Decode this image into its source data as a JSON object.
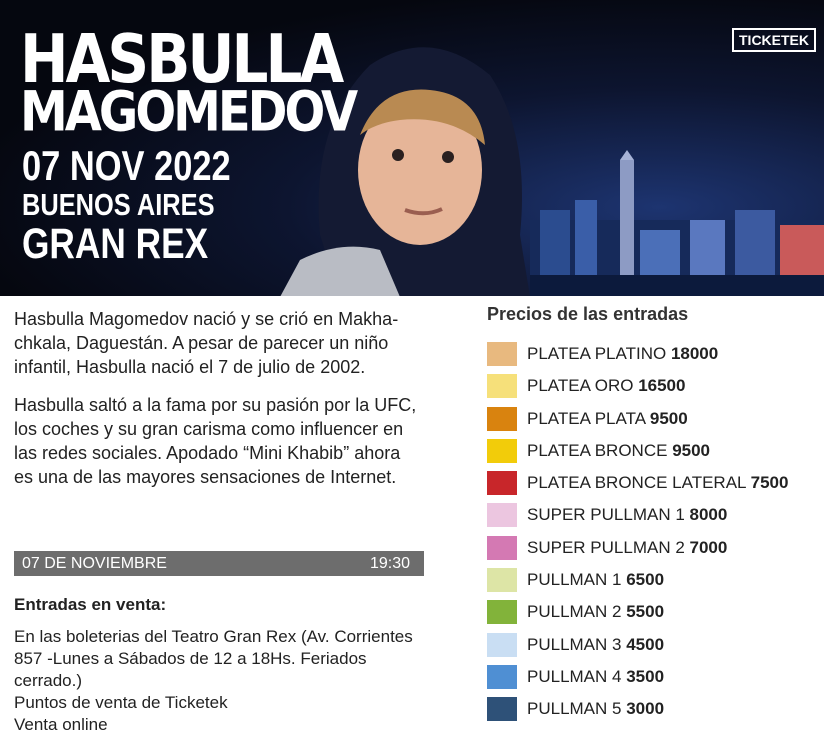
{
  "banner": {
    "title_line1": "HASBULLA",
    "title_line2": "MAGOMEDOV",
    "date": "07 NOV 2022",
    "city": "BUENOS AIRES",
    "venue": "GRAN REX",
    "logo": "TICKETEK"
  },
  "description": {
    "paragraphs": [
      "Hasbulla Magomedov nació y se crió en Makha- chkala, Daguestán. A pesar de parecer un niño infantil, Hasbulla nació el 7 de julio de 2002.",
      "Hasbulla saltó a la fama por su pasión por la UFC, los coches y su gran carisma como influencer en las redes sociales. Apodado “Mini Khabib” ahora es una de las mayores sensaciones de Internet."
    ]
  },
  "event_bar": {
    "date": "07 DE NOVIEMBRE",
    "time": "19:30"
  },
  "sales": {
    "heading": "Entradas en venta:",
    "lines": [
      "En las boleterias del Teatro Gran Rex (Av. Corrientes 857 -Lunes a Sábados de 12 a 18Hs. Feriados cerrado.)",
      "Puntos de venta de Ticketek",
      "Venta online"
    ]
  },
  "prices": {
    "heading": "Precios de las entradas",
    "items": [
      {
        "name": "PLATEA PLATINO",
        "price": "18000",
        "color": "#e8b97f"
      },
      {
        "name": "PLATEA ORO",
        "price": "16500",
        "color": "#f6e07a"
      },
      {
        "name": "PLATEA PLATA",
        "price": "9500",
        "color": "#d9830f"
      },
      {
        "name": "PLATEA BRONCE",
        "price": "9500",
        "color": "#f2cc0a"
      },
      {
        "name": "PLATEA BRONCE LATERAL",
        "price": "7500",
        "color": "#c8262a"
      },
      {
        "name": "SUPER PULLMAN 1",
        "price": "8000",
        "color": "#ecc6e0"
      },
      {
        "name": "SUPER PULLMAN 2",
        "price": "7000",
        "color": "#d479b3"
      },
      {
        "name": "PULLMAN 1",
        "price": "6500",
        "color": "#dde5a6"
      },
      {
        "name": "PULLMAN 2",
        "price": "5500",
        "color": "#82b33a"
      },
      {
        "name": "PULLMAN 3",
        "price": "4500",
        "color": "#c9def3"
      },
      {
        "name": "PULLMAN 4",
        "price": "3500",
        "color": "#4f8fd3"
      },
      {
        "name": "PULLMAN 5",
        "price": "3000",
        "color": "#2e5178"
      }
    ]
  }
}
